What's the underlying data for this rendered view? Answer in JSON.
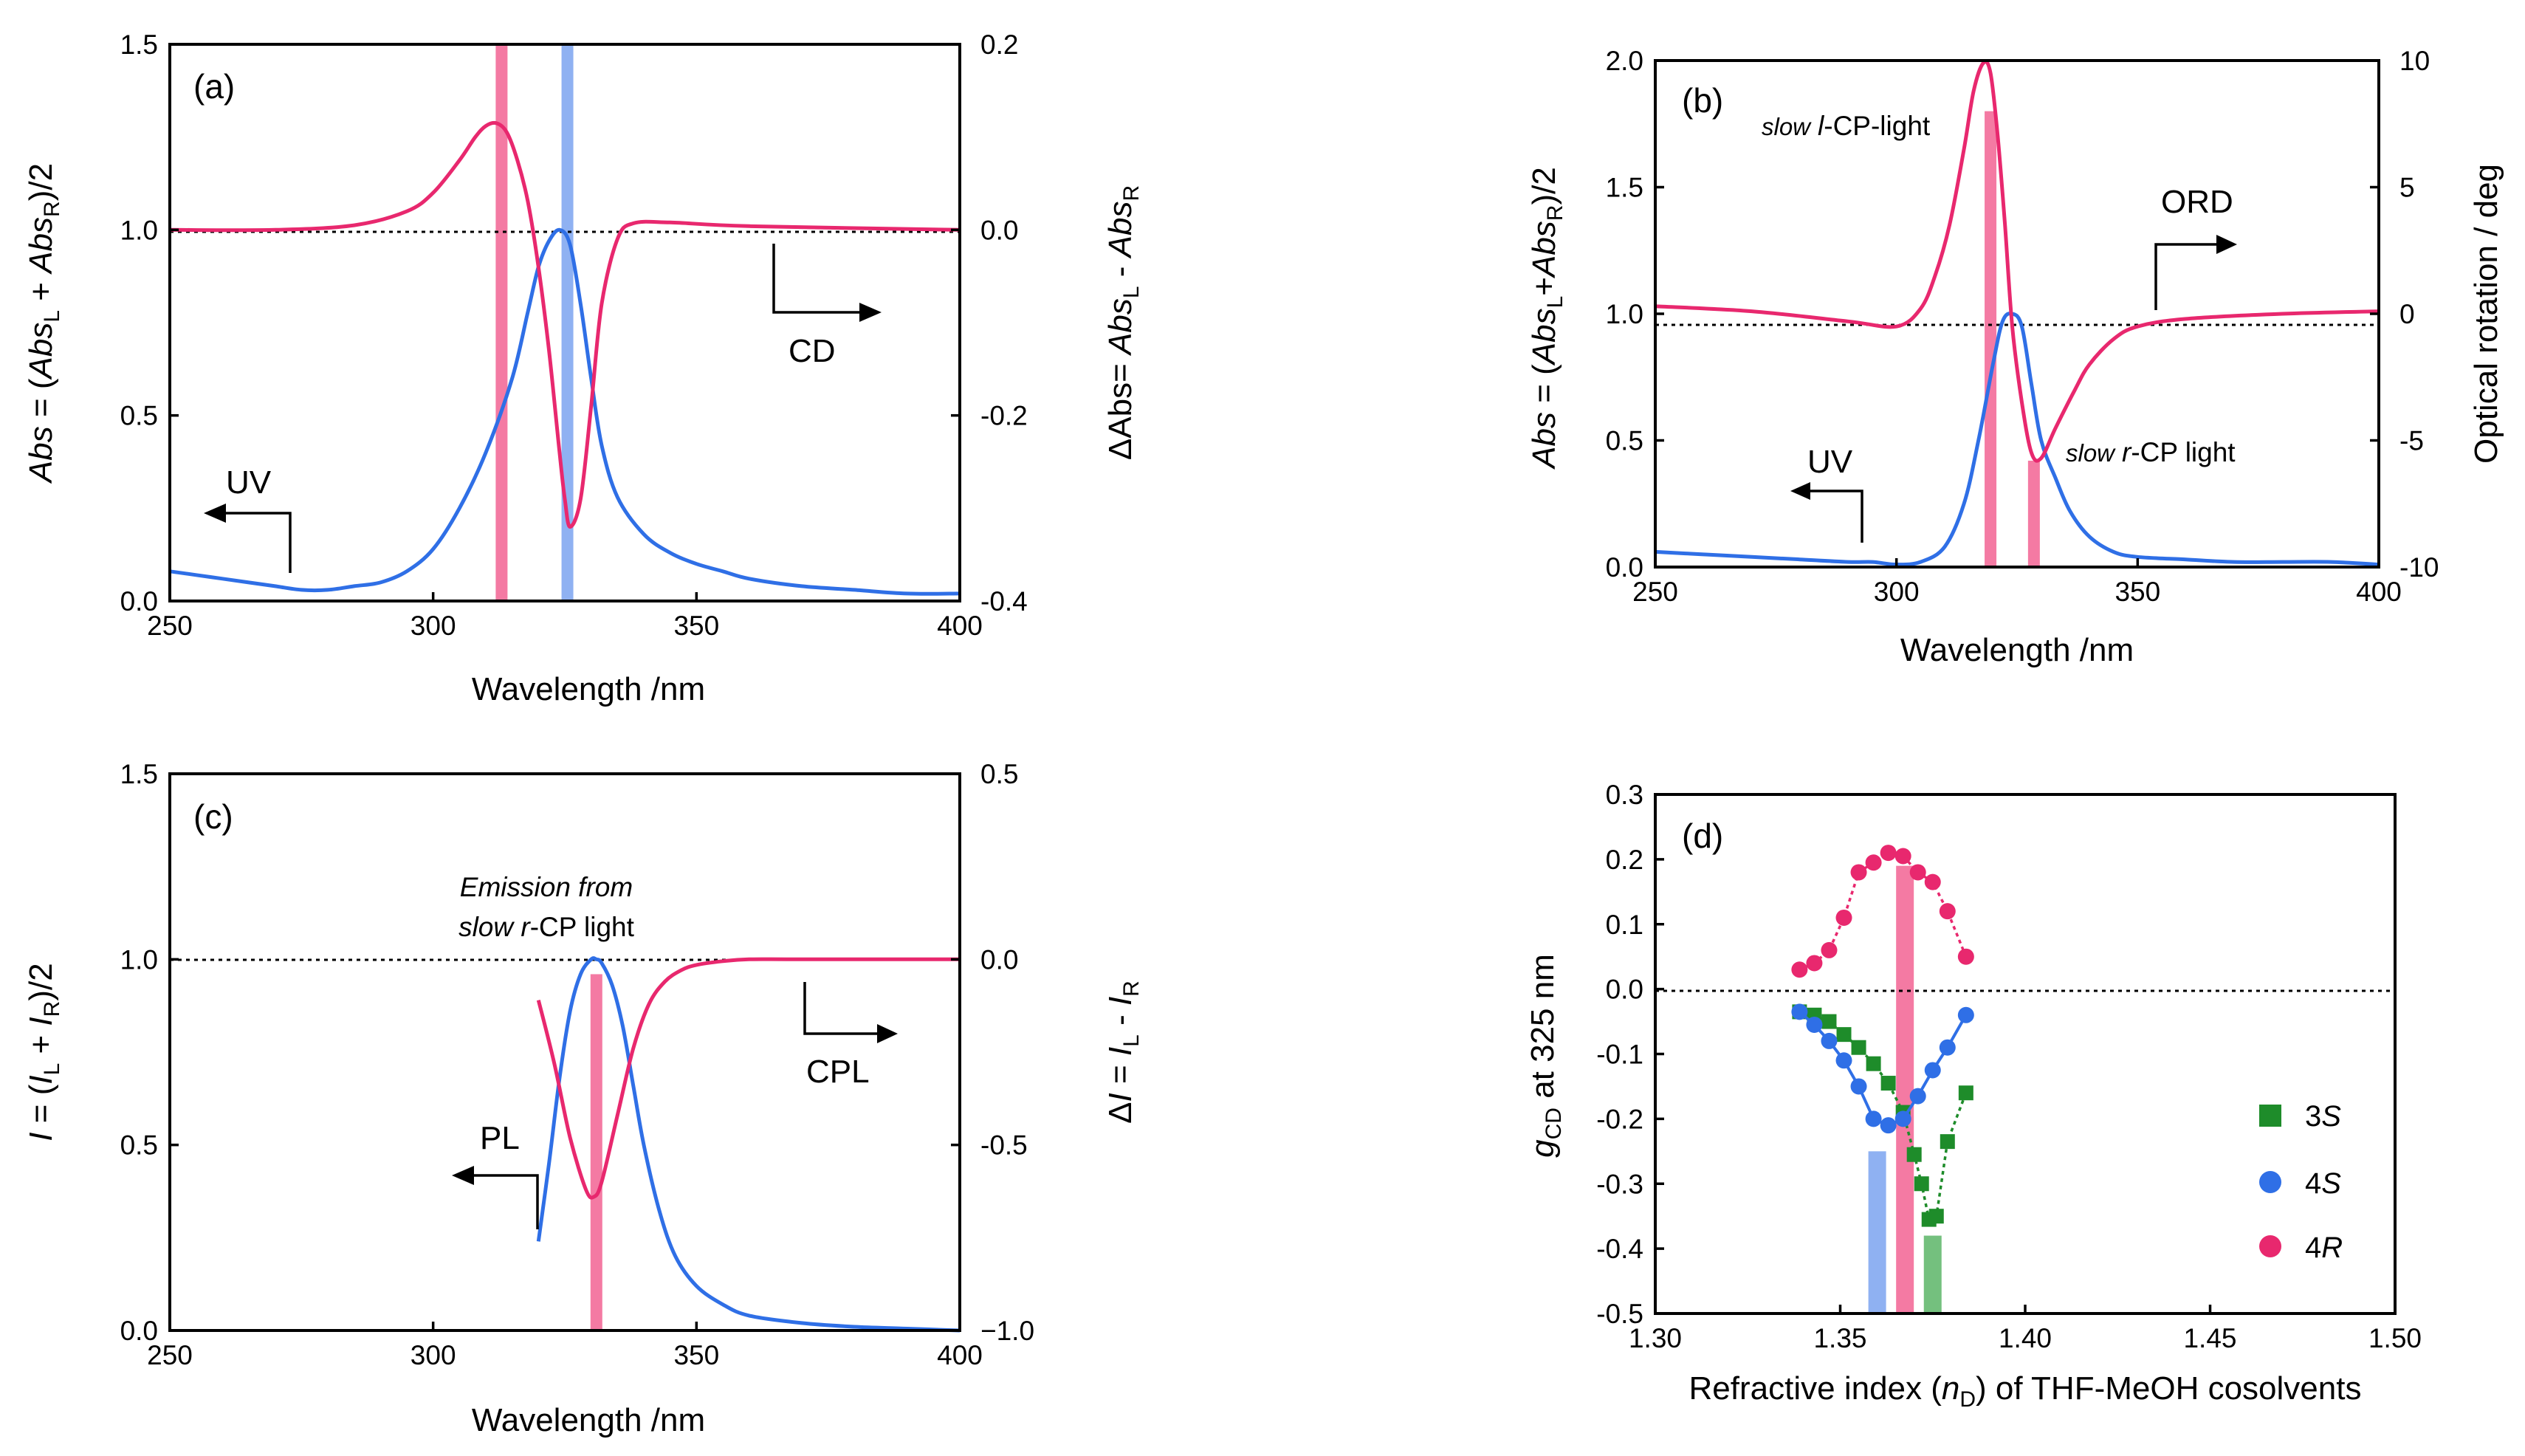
{
  "colors": {
    "pink": "#e8286e",
    "blue": "#2f6fe6",
    "green": "#1e8c2a",
    "pink_band": "#f47aa3",
    "blue_band": "#8fb1f2",
    "green_band": "#74c07e"
  },
  "panels": {
    "a": {
      "label": "(a)",
      "xlabel": "Wavelength /nm",
      "ylabel_left": "Abs = (AbsL + AbsR)/2",
      "ylabel_right": "ΔAbs= AbsL - AbsR",
      "uv": "UV",
      "cd": "CD"
    },
    "b": {
      "label": "(b)",
      "xlabel": "Wavelength /nm",
      "ylabel_left": "Abs = (AbsL+AbsR)/2",
      "ylabel_right": "Optical rotation / deg",
      "uv": "UV",
      "ord": "ORD",
      "slow_l": "slow l-CP-light",
      "slow_r": "slow r-CP light"
    },
    "c": {
      "label": "(c)",
      "xlabel": "Wavelength /nm",
      "ylabel_left": "I = (IL + IR)/2",
      "ylabel_right": "ΔI = IL - IR",
      "pl": "PL",
      "cpl": "CPL",
      "emission_line1": "Emission from",
      "emission_line2": "slow r-CP light"
    },
    "d": {
      "label": "(d)",
      "xlabel": "Refractive index (nD) of THF-MeOH cosolvents",
      "ylabel": "gCD at 325 nm",
      "legend": [
        "3S",
        "4S",
        "4R"
      ]
    }
  },
  "chart_data": [
    {
      "id": "a",
      "type": "line",
      "x_range": [
        250,
        400
      ],
      "xticks": [
        "250",
        "300",
        "350",
        "400"
      ],
      "y_left_range": [
        0,
        1.5
      ],
      "y_left_ticks": [
        "0.0",
        "0.5",
        "1.0",
        "1.5"
      ],
      "y_right_range": [
        -0.4,
        0.2
      ],
      "y_right_ticks": [
        "-0.4",
        "-0.2",
        "0.0",
        "0.2"
      ],
      "series": [
        {
          "name": "UV",
          "axis": "left",
          "color": "blue",
          "x": [
            250,
            255,
            260,
            265,
            270,
            275,
            280,
            285,
            290,
            295,
            300,
            305,
            310,
            315,
            318,
            320,
            322,
            324,
            326,
            328,
            330,
            332,
            335,
            340,
            345,
            350,
            355,
            360,
            370,
            380,
            390,
            400
          ],
          "y": [
            0.08,
            0.07,
            0.06,
            0.05,
            0.04,
            0.03,
            0.03,
            0.04,
            0.05,
            0.08,
            0.14,
            0.25,
            0.4,
            0.6,
            0.78,
            0.9,
            0.97,
            1.0,
            0.96,
            0.8,
            0.6,
            0.42,
            0.28,
            0.18,
            0.13,
            0.1,
            0.08,
            0.06,
            0.04,
            0.03,
            0.02,
            0.02
          ]
        },
        {
          "name": "CD",
          "axis": "right",
          "color": "pink",
          "x": [
            250,
            270,
            285,
            295,
            300,
            305,
            308,
            310,
            312,
            314,
            316,
            318,
            320,
            322,
            324,
            325,
            326,
            328,
            330,
            332,
            335,
            338,
            345,
            360,
            400
          ],
          "y": [
            0.0,
            0.0,
            0.005,
            0.02,
            0.04,
            0.075,
            0.1,
            0.112,
            0.115,
            0.105,
            0.075,
            0.03,
            -0.04,
            -0.13,
            -0.24,
            -0.29,
            -0.32,
            -0.29,
            -0.19,
            -0.08,
            -0.01,
            0.007,
            0.008,
            0.004,
            0.0
          ]
        }
      ],
      "bands": [
        {
          "x": 313,
          "color": "pink"
        },
        {
          "x": 325.5,
          "color": "blue"
        }
      ]
    },
    {
      "id": "b",
      "type": "line",
      "x_range": [
        250,
        400
      ],
      "xticks": [
        "250",
        "300",
        "350",
        "400"
      ],
      "y_left_range": [
        0,
        2.0
      ],
      "y_left_ticks": [
        "0.0",
        "0.5",
        "1.0",
        "1.5",
        "2.0"
      ],
      "y_right_range": [
        -10,
        10
      ],
      "y_right_ticks": [
        "-10",
        "-5",
        "0",
        "5",
        "10"
      ],
      "series": [
        {
          "name": "UV",
          "axis": "left",
          "color": "blue",
          "x": [
            250,
            260,
            270,
            280,
            290,
            295,
            300,
            305,
            310,
            314,
            317,
            320,
            322,
            324,
            326,
            328,
            330,
            333,
            336,
            340,
            345,
            350,
            360,
            370,
            380,
            390,
            400
          ],
          "y": [
            0.06,
            0.05,
            0.04,
            0.03,
            0.02,
            0.02,
            0.01,
            0.02,
            0.08,
            0.25,
            0.5,
            0.8,
            0.97,
            1.0,
            0.95,
            0.72,
            0.5,
            0.35,
            0.22,
            0.12,
            0.06,
            0.04,
            0.03,
            0.02,
            0.02,
            0.02,
            0.01
          ]
        },
        {
          "name": "ORD",
          "axis": "right",
          "color": "pink",
          "x": [
            250,
            270,
            290,
            300,
            305,
            308,
            311,
            314,
            316,
            318,
            319.5,
            321,
            322.5,
            324,
            326,
            328,
            330,
            333,
            337,
            340,
            345,
            350,
            360,
            380,
            400
          ],
          "y": [
            0.3,
            0.1,
            -0.3,
            -0.5,
            0.2,
            1.5,
            3.5,
            6.5,
            8.8,
            9.9,
            9.5,
            7.0,
            3.5,
            -0.5,
            -3.5,
            -5.5,
            -5.7,
            -4.5,
            -3.0,
            -2.0,
            -1.0,
            -0.5,
            -0.2,
            0.0,
            0.1
          ]
        }
      ],
      "annotations": [
        "slow l-CP-light",
        "slow r-CP light"
      ],
      "bands": [
        {
          "x": 319.5,
          "color": "pink",
          "top": 1.8
        },
        {
          "x": 328.5,
          "color": "pink",
          "top": 0.42
        }
      ]
    },
    {
      "id": "c",
      "type": "line",
      "x_range": [
        250,
        400
      ],
      "xticks": [
        "250",
        "300",
        "350",
        "400"
      ],
      "y_left_range": [
        0,
        1.5
      ],
      "y_left_ticks": [
        "0.0",
        "0.5",
        "1.0",
        "1.5"
      ],
      "y_right_range": [
        -1.0,
        0.5
      ],
      "y_right_ticks": [
        "−1.0",
        "-0.5",
        "0.0",
        "0.5"
      ],
      "series": [
        {
          "name": "PL",
          "axis": "left",
          "color": "blue",
          "x": [
            320,
            322,
            324,
            326,
            328,
            330,
            331,
            332,
            334,
            336,
            338,
            340,
            343,
            346,
            350,
            355,
            360,
            370,
            380,
            390,
            400
          ],
          "y": [
            0.24,
            0.45,
            0.68,
            0.86,
            0.96,
            1.0,
            1.0,
            0.99,
            0.93,
            0.82,
            0.66,
            0.5,
            0.32,
            0.2,
            0.12,
            0.07,
            0.04,
            0.02,
            0.01,
            0.005,
            0.0
          ]
        },
        {
          "name": "CPL",
          "axis": "right",
          "color": "pink",
          "x": [
            320,
            323,
            326,
            329,
            330.5,
            332,
            335,
            338,
            341,
            344,
            347,
            350,
            355,
            360,
            370,
            400
          ],
          "y": [
            -0.11,
            -0.28,
            -0.48,
            -0.62,
            -0.64,
            -0.6,
            -0.42,
            -0.24,
            -0.12,
            -0.06,
            -0.03,
            -0.015,
            -0.005,
            0.0,
            0.0,
            0.0
          ]
        }
      ],
      "bands": [
        {
          "x": 331,
          "color": "pink",
          "top": 0.96
        }
      ]
    },
    {
      "id": "d",
      "type": "scatter",
      "x_range": [
        1.3,
        1.5
      ],
      "xticks": [
        "1.30",
        "1.35",
        "1.40",
        "1.45",
        "1.50"
      ],
      "y_range": [
        -0.5,
        0.3
      ],
      "yticks": [
        "-0.5",
        "-0.4",
        "-0.3",
        "-0.2",
        "-0.1",
        "0.0",
        "0.1",
        "0.2",
        "0.3"
      ],
      "series": [
        {
          "name": "3S",
          "color": "green",
          "marker": "square",
          "x": [
            1.339,
            1.343,
            1.347,
            1.351,
            1.355,
            1.359,
            1.363,
            1.367,
            1.37,
            1.372,
            1.374,
            1.376,
            1.379,
            1.384
          ],
          "y": [
            -0.035,
            -0.04,
            -0.05,
            -0.07,
            -0.09,
            -0.115,
            -0.145,
            -0.19,
            -0.255,
            -0.3,
            -0.355,
            -0.35,
            -0.235,
            -0.16
          ]
        },
        {
          "name": "4S",
          "color": "blue",
          "marker": "circle",
          "x": [
            1.339,
            1.343,
            1.347,
            1.351,
            1.355,
            1.359,
            1.363,
            1.367,
            1.371,
            1.375,
            1.379,
            1.384
          ],
          "y": [
            -0.035,
            -0.055,
            -0.08,
            -0.11,
            -0.15,
            -0.2,
            -0.21,
            -0.2,
            -0.165,
            -0.125,
            -0.09,
            -0.04
          ]
        },
        {
          "name": "4R",
          "color": "pink",
          "marker": "circle",
          "x": [
            1.339,
            1.343,
            1.347,
            1.351,
            1.355,
            1.359,
            1.363,
            1.367,
            1.371,
            1.375,
            1.379,
            1.384
          ],
          "y": [
            0.03,
            0.04,
            0.06,
            0.11,
            0.18,
            0.195,
            0.21,
            0.205,
            0.18,
            0.165,
            0.12,
            0.05
          ]
        }
      ],
      "bands": [
        {
          "x": 1.36,
          "color": "blue",
          "bottom": -0.5,
          "top": -0.25
        },
        {
          "x": 1.3675,
          "color": "pink",
          "bottom": -0.5,
          "top": 0.19
        },
        {
          "x": 1.375,
          "color": "green",
          "bottom": -0.5,
          "top": -0.38
        }
      ]
    }
  ]
}
